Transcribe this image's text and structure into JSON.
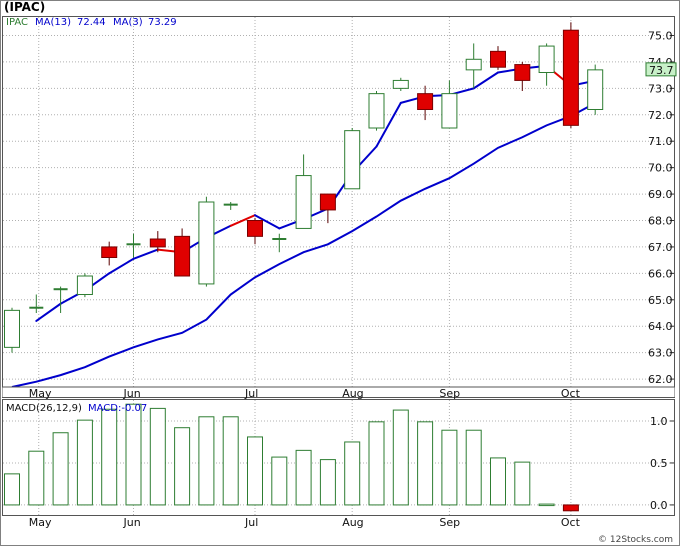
{
  "symbol": "(IPAC)",
  "legend": {
    "ticker": "IPAC",
    "ma13": "MA(13)",
    "ma13_value": "72.44",
    "ma3": "MA(3)",
    "ma3_value": "73.29"
  },
  "macd_legend": {
    "label": "MACD(26,12,9)",
    "value_label": "MACD:-0.07"
  },
  "last_price_label": "73.7",
  "watermark": "© 12Stocks.com",
  "colors": {
    "up_candle_border": "#2e7d32",
    "down_candle_fill": "#e00000",
    "ma_line": "#0000cc",
    "ma_line_down": "#e00000",
    "grid": "#b0b0b0",
    "price_label_bg": "#c8f0c8"
  },
  "chart_data": [
    {
      "type": "candlestick",
      "x_ticks": [
        "May",
        "Jun",
        "Jul",
        "Aug",
        "Sep",
        "Oct"
      ],
      "y_ticks": [
        "75.0",
        "74.0",
        "73.0",
        "72.0",
        "71.0",
        "70.0",
        "69.0",
        "68.0",
        "67.0",
        "66.0",
        "65.0",
        "64.0",
        "63.0",
        "62.0"
      ],
      "ylim": [
        61.7,
        75.7
      ],
      "candles": [
        {
          "o": 63.2,
          "h": 64.7,
          "l": 63.0,
          "c": 64.6
        },
        {
          "o": 64.7,
          "h": 65.2,
          "l": 64.5,
          "c": 64.7
        },
        {
          "o": 65.3,
          "h": 65.5,
          "l": 64.5,
          "c": 65.4
        },
        {
          "o": 65.2,
          "h": 66.0,
          "l": 65.1,
          "c": 65.9
        },
        {
          "o": 67.0,
          "h": 67.2,
          "l": 66.3,
          "c": 66.6
        },
        {
          "o": 67.0,
          "h": 67.5,
          "l": 66.6,
          "c": 67.1
        },
        {
          "o": 67.3,
          "h": 67.6,
          "l": 66.8,
          "c": 67.0
        },
        {
          "o": 67.4,
          "h": 67.7,
          "l": 65.9,
          "c": 65.9
        },
        {
          "o": 65.6,
          "h": 68.9,
          "l": 65.5,
          "c": 68.7
        },
        {
          "o": 68.5,
          "h": 68.7,
          "l": 68.4,
          "c": 68.6
        },
        {
          "o": 68.0,
          "h": 68.1,
          "l": 67.1,
          "c": 67.4
        },
        {
          "o": 67.3,
          "h": 67.5,
          "l": 66.8,
          "c": 67.3
        },
        {
          "o": 67.7,
          "h": 70.5,
          "l": 67.7,
          "c": 69.7
        },
        {
          "o": 69.0,
          "h": 69.0,
          "l": 67.9,
          "c": 68.4
        },
        {
          "o": 69.2,
          "h": 71.5,
          "l": 69.2,
          "c": 71.4
        },
        {
          "o": 71.5,
          "h": 72.9,
          "l": 71.4,
          "c": 72.8
        },
        {
          "o": 73.0,
          "h": 73.4,
          "l": 72.9,
          "c": 73.3
        },
        {
          "o": 72.8,
          "h": 73.1,
          "l": 71.8,
          "c": 72.2
        },
        {
          "o": 71.5,
          "h": 73.3,
          "l": 71.5,
          "c": 72.8
        },
        {
          "o": 73.7,
          "h": 74.7,
          "l": 73.0,
          "c": 74.1
        },
        {
          "o": 74.4,
          "h": 74.6,
          "l": 73.7,
          "c": 73.8
        },
        {
          "o": 73.9,
          "h": 74.0,
          "l": 72.9,
          "c": 73.3
        },
        {
          "o": 73.6,
          "h": 74.7,
          "l": 73.1,
          "c": 74.6
        },
        {
          "o": 75.2,
          "h": 75.5,
          "l": 71.5,
          "c": 71.6
        },
        {
          "o": 72.2,
          "h": 73.9,
          "l": 72.0,
          "c": 73.7
        }
      ],
      "ma13": [
        61.7,
        61.9,
        62.15,
        62.45,
        62.85,
        63.2,
        63.5,
        63.75,
        64.25,
        65.2,
        65.85,
        66.35,
        66.8,
        67.1,
        67.6,
        68.15,
        68.75,
        69.2,
        69.6,
        70.15,
        70.75,
        71.15,
        71.6,
        71.95,
        72.44
      ],
      "ma3": [
        null,
        64.2,
        64.85,
        65.35,
        66.0,
        66.55,
        66.9,
        66.8,
        67.35,
        67.8,
        68.2,
        67.7,
        68.05,
        68.45,
        69.8,
        70.8,
        72.45,
        72.7,
        72.75,
        73.0,
        73.6,
        73.75,
        73.85,
        73.1,
        73.29
      ],
      "ma3_down_segments": [
        [
          6,
          7
        ],
        [
          9,
          10
        ],
        [
          22,
          23
        ]
      ]
    },
    {
      "type": "bar",
      "name": "MACD(26,12,9)",
      "y_ticks": [
        "1.0",
        "0.5",
        "0.0"
      ],
      "ylim": [
        -0.12,
        1.25
      ],
      "values": [
        0.37,
        0.64,
        0.86,
        1.01,
        1.14,
        1.2,
        1.15,
        0.92,
        1.05,
        1.05,
        0.81,
        0.57,
        0.65,
        0.54,
        0.75,
        0.99,
        1.13,
        0.99,
        0.89,
        0.89,
        0.56,
        0.51,
        0.01,
        -0.07
      ]
    }
  ]
}
